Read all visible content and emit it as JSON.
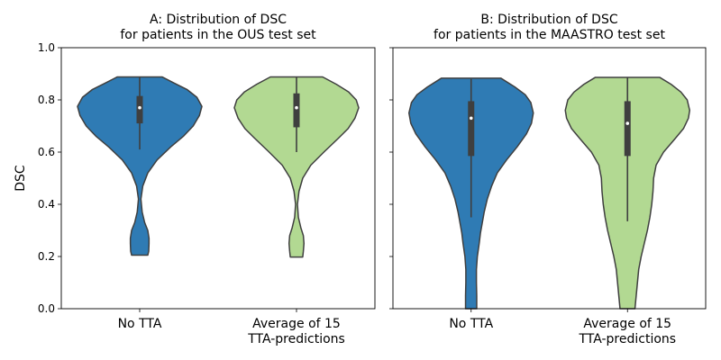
{
  "chart_data": [
    {
      "type": "violin",
      "title_lines": [
        "A: Distribution of DSC",
        "for patients in the OUS test set"
      ],
      "ylabel": "DSC",
      "ylim": [
        0.0,
        1.0
      ],
      "yticks": [
        "0.0",
        "0.2",
        "0.4",
        "0.6",
        "0.8",
        "1.0"
      ],
      "categories": [
        {
          "lines": [
            "No TTA"
          ]
        },
        {
          "lines": [
            "Average of 15",
            "TTA-predictions"
          ]
        }
      ],
      "violins": [
        {
          "color": "#2f7bb4",
          "min": 0.205,
          "max": 0.888,
          "median": 0.77,
          "q1": 0.71,
          "q3": 0.815,
          "whisker_low": 0.61,
          "whisker_high": 0.888,
          "profile": [
            [
              0.205,
              0.13
            ],
            [
              0.22,
              0.145
            ],
            [
              0.25,
              0.15
            ],
            [
              0.27,
              0.15
            ],
            [
              0.3,
              0.13
            ],
            [
              0.33,
              0.08
            ],
            [
              0.37,
              0.04
            ],
            [
              0.42,
              0.02
            ],
            [
              0.47,
              0.05
            ],
            [
              0.52,
              0.13
            ],
            [
              0.57,
              0.28
            ],
            [
              0.62,
              0.5
            ],
            [
              0.66,
              0.7
            ],
            [
              0.7,
              0.86
            ],
            [
              0.74,
              0.96
            ],
            [
              0.775,
              1.0
            ],
            [
              0.81,
              0.92
            ],
            [
              0.84,
              0.76
            ],
            [
              0.865,
              0.55
            ],
            [
              0.888,
              0.36
            ]
          ]
        },
        {
          "color": "#b2d992",
          "min": 0.198,
          "max": 0.888,
          "median": 0.77,
          "q1": 0.695,
          "q3": 0.825,
          "whisker_low": 0.6,
          "whisker_high": 0.888,
          "profile": [
            [
              0.198,
              0.1
            ],
            [
              0.22,
              0.11
            ],
            [
              0.25,
              0.12
            ],
            [
              0.28,
              0.11
            ],
            [
              0.31,
              0.07
            ],
            [
              0.35,
              0.03
            ],
            [
              0.4,
              0.015
            ],
            [
              0.45,
              0.04
            ],
            [
              0.5,
              0.1
            ],
            [
              0.55,
              0.23
            ],
            [
              0.6,
              0.44
            ],
            [
              0.65,
              0.66
            ],
            [
              0.69,
              0.83
            ],
            [
              0.73,
              0.94
            ],
            [
              0.77,
              1.0
            ],
            [
              0.8,
              0.96
            ],
            [
              0.83,
              0.84
            ],
            [
              0.86,
              0.64
            ],
            [
              0.888,
              0.42
            ]
          ]
        }
      ]
    },
    {
      "type": "violin",
      "title_lines": [
        "B: Distribution of DSC",
        "for patients in the MAASTRO test set"
      ],
      "ylabel": "",
      "ylim": [
        0.0,
        1.0
      ],
      "yticks": [
        "0.0",
        "0.2",
        "0.4",
        "0.6",
        "0.8",
        "1.0"
      ],
      "categories": [
        {
          "lines": [
            "No TTA"
          ]
        },
        {
          "lines": [
            "Average of 15",
            "TTA-predictions"
          ]
        }
      ],
      "violins": [
        {
          "color": "#2f7bb4",
          "min": 0.0,
          "max": 0.883,
          "median": 0.73,
          "q1": 0.585,
          "q3": 0.795,
          "whisker_low": 0.35,
          "whisker_high": 0.88,
          "profile": [
            [
              0.0,
              0.09
            ],
            [
              0.05,
              0.09
            ],
            [
              0.1,
              0.085
            ],
            [
              0.15,
              0.085
            ],
            [
              0.2,
              0.1
            ],
            [
              0.25,
              0.13
            ],
            [
              0.29,
              0.15
            ],
            [
              0.33,
              0.18
            ],
            [
              0.37,
              0.21
            ],
            [
              0.42,
              0.26
            ],
            [
              0.47,
              0.33
            ],
            [
              0.52,
              0.42
            ],
            [
              0.57,
              0.57
            ],
            [
              0.62,
              0.74
            ],
            [
              0.67,
              0.89
            ],
            [
              0.71,
              0.97
            ],
            [
              0.75,
              1.0
            ],
            [
              0.79,
              0.96
            ],
            [
              0.82,
              0.87
            ],
            [
              0.85,
              0.7
            ],
            [
              0.883,
              0.48
            ]
          ]
        },
        {
          "color": "#b2d992",
          "min": 0.0,
          "max": 0.886,
          "median": 0.71,
          "q1": 0.585,
          "q3": 0.795,
          "whisker_low": 0.335,
          "whisker_high": 0.886,
          "profile": [
            [
              0.0,
              0.12
            ],
            [
              0.05,
              0.14
            ],
            [
              0.1,
              0.16
            ],
            [
              0.15,
              0.18
            ],
            [
              0.2,
              0.22
            ],
            [
              0.25,
              0.27
            ],
            [
              0.3,
              0.32
            ],
            [
              0.35,
              0.36
            ],
            [
              0.4,
              0.39
            ],
            [
              0.45,
              0.41
            ],
            [
              0.5,
              0.42
            ],
            [
              0.55,
              0.46
            ],
            [
              0.6,
              0.58
            ],
            [
              0.65,
              0.76
            ],
            [
              0.69,
              0.9
            ],
            [
              0.73,
              0.98
            ],
            [
              0.76,
              1.0
            ],
            [
              0.8,
              0.96
            ],
            [
              0.83,
              0.86
            ],
            [
              0.86,
              0.7
            ],
            [
              0.886,
              0.52
            ]
          ]
        }
      ]
    }
  ]
}
